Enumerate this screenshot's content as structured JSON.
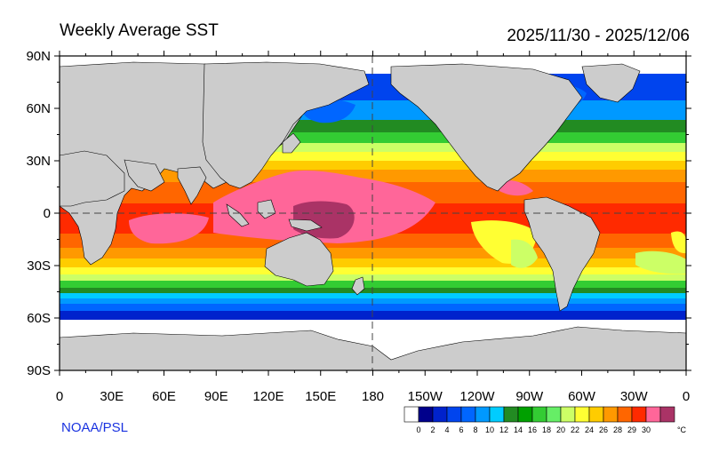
{
  "title": "Weekly Average SST",
  "date_range": "2025/11/30 - 2025/12/06",
  "credit": "NOAA/PSL",
  "unit": "°C",
  "lat_labels": [
    "90N",
    "60N",
    "30N",
    "0",
    "30S",
    "60S",
    "90S"
  ],
  "lon_labels": [
    "0",
    "30E",
    "60E",
    "90E",
    "120E",
    "150E",
    "180",
    "150W",
    "120W",
    "90W",
    "60W",
    "30W",
    "0"
  ],
  "colorbar": {
    "labels": [
      "0",
      "2",
      "4",
      "6",
      "8",
      "10",
      "12",
      "14",
      "16",
      "18",
      "20",
      "22",
      "24",
      "26",
      "28",
      "29",
      "30"
    ],
    "colors": [
      "#ffffff",
      "#00008b",
      "#0022cc",
      "#0044ee",
      "#0066ff",
      "#0099ff",
      "#00ccff",
      "#228b22",
      "#00a000",
      "#33cc33",
      "#66ee66",
      "#ccff66",
      "#ffff33",
      "#ffcc00",
      "#ff9900",
      "#ff6600",
      "#ff2a00",
      "#ff6699",
      "#aa3366"
    ]
  },
  "colors": {
    "land": "#cccccc",
    "ice": "#ffffff",
    "credit_text": "#1a33e0"
  }
}
